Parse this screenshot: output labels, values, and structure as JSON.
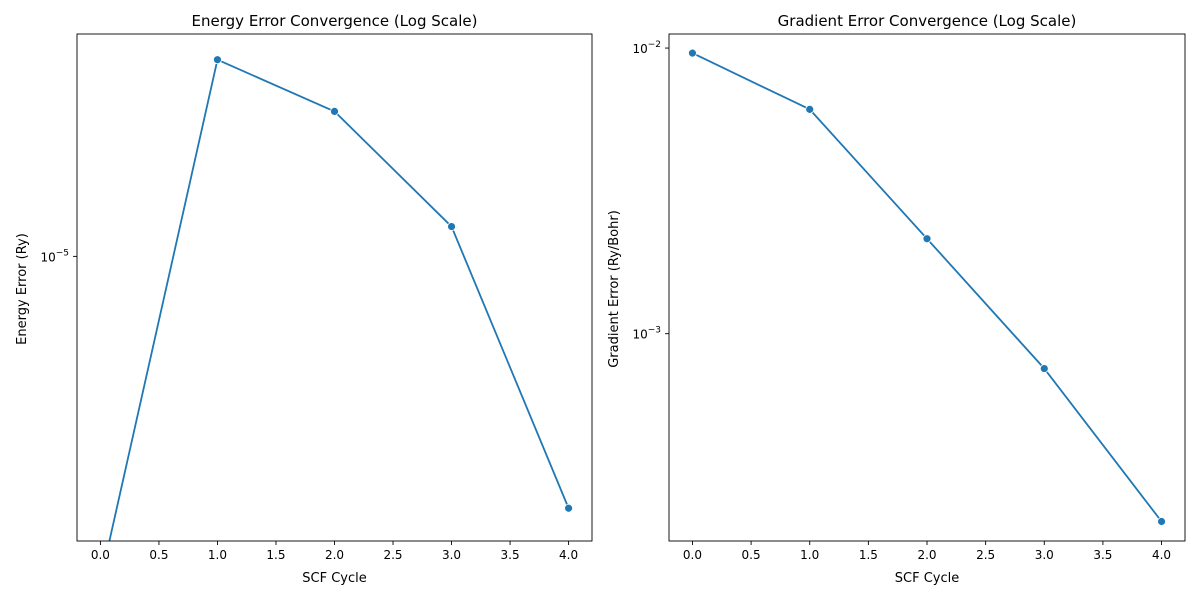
{
  "chart_data": [
    {
      "type": "line",
      "title": "Energy Error Convergence (Log Scale)",
      "xlabel": "SCF Cycle",
      "ylabel": "Energy Error (Ry)",
      "x": [
        0,
        1,
        2,
        3,
        4
      ],
      "y": [
        0,
        3.15e-05,
        2.33e-05,
        1.19e-05,
        2.3e-06
      ],
      "yscale": "log",
      "xlim": [
        -0.2,
        4.2
      ],
      "ylim": [
        1.9e-06,
        3.66e-05
      ],
      "xticks": [
        0.0,
        0.5,
        1.0,
        1.5,
        2.0,
        2.5,
        3.0,
        3.5,
        4.0
      ],
      "xtick_labels": [
        "0.0",
        "0.5",
        "1.0",
        "1.5",
        "2.0",
        "2.5",
        "3.0",
        "3.5",
        "4.0"
      ],
      "yticks": [
        1e-05
      ],
      "ytick_labels": [
        {
          "base": "10",
          "exp": "−5"
        }
      ],
      "grid": false,
      "marker": "circle",
      "color": "#1f77b4"
    },
    {
      "type": "line",
      "title": "Gradient Error Convergence (Log Scale)",
      "xlabel": "SCF Cycle",
      "ylabel": "Gradient Error (Ry/Bohr)",
      "x": [
        0,
        1,
        2,
        3,
        4
      ],
      "y": [
        0.0096,
        0.0061,
        0.00215,
        0.000755,
        0.00022
      ],
      "yscale": "log",
      "xlim": [
        -0.2,
        4.2
      ],
      "ylim": [
        0.000188,
        0.0112
      ],
      "xticks": [
        0.0,
        0.5,
        1.0,
        1.5,
        2.0,
        2.5,
        3.0,
        3.5,
        4.0
      ],
      "xtick_labels": [
        "0.0",
        "0.5",
        "1.0",
        "1.5",
        "2.0",
        "2.5",
        "3.0",
        "3.5",
        "4.0"
      ],
      "yticks": [
        0.001,
        0.01
      ],
      "ytick_labels": [
        {
          "base": "10",
          "exp": "−3"
        },
        {
          "base": "10",
          "exp": "−2"
        }
      ],
      "grid": false,
      "marker": "circle",
      "color": "#1f77b4"
    }
  ]
}
